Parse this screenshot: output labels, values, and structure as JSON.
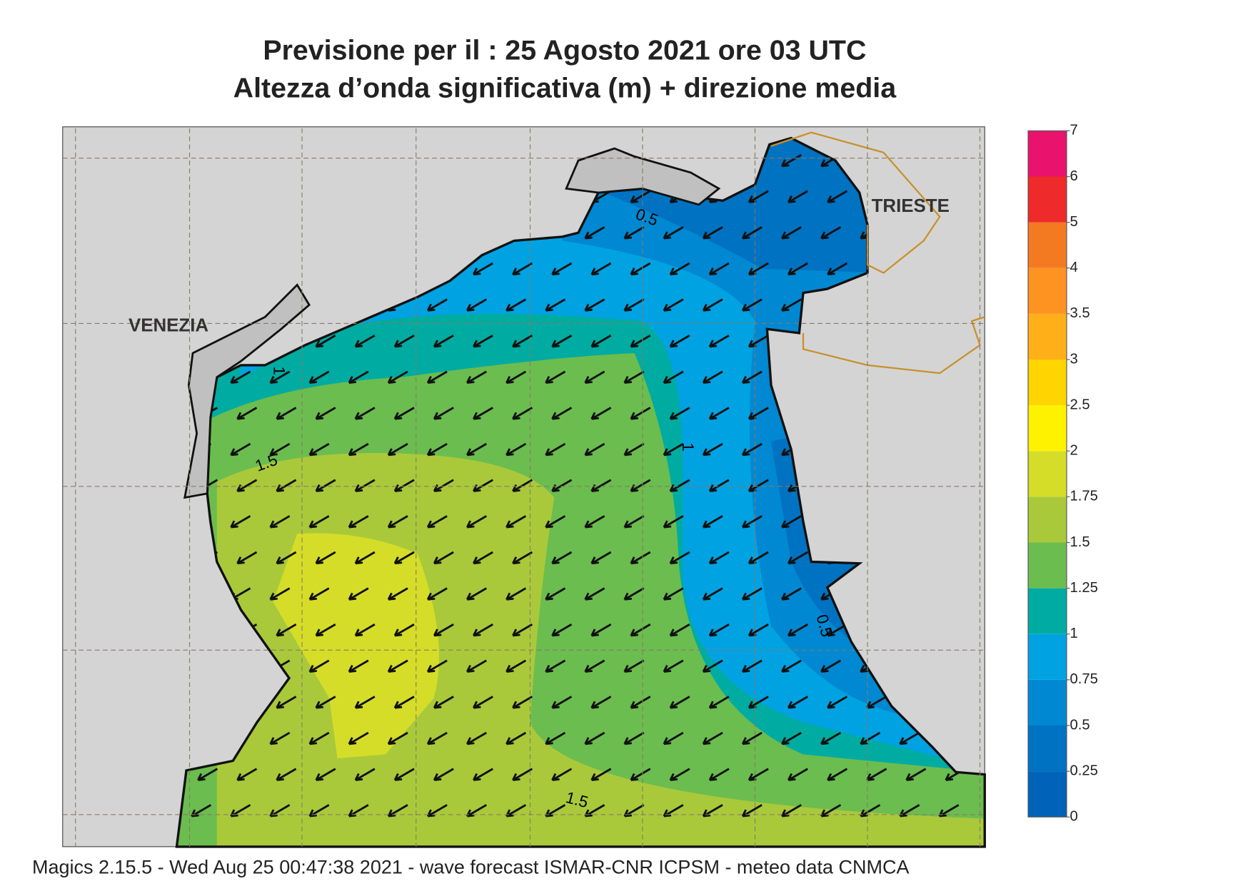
{
  "header": {
    "title": "Previsione per il  :  25   Agosto  2021   ore 03 UTC",
    "subtitle": "Altezza d’onda significativa (m) + direzione media"
  },
  "map": {
    "places": [
      "VENEZIA",
      "TRIESTE"
    ],
    "contour_labels": [
      0.5,
      1,
      1.5,
      1,
      0.5,
      1.5
    ]
  },
  "legend": {
    "levels": [
      0,
      0.25,
      0.5,
      0.75,
      1,
      1.25,
      1.5,
      1.75,
      2,
      2.5,
      3,
      3.5,
      4,
      5,
      6,
      7
    ],
    "colors": [
      "#0062b8",
      "#0072c2",
      "#0088d2",
      "#00a2e2",
      "#00aba2",
      "#6bbd4f",
      "#a9c93b",
      "#d5dd29",
      "#fff200",
      "#ffd400",
      "#ffb019",
      "#ff9322",
      "#f47a21",
      "#ee2a2a",
      "#e9126c"
    ]
  },
  "footer": "Magics 2.15.5 - Wed Aug 25 00:47:38 2021 - wave forecast  ISMAR-CNR  ICPSM - meteo data   CNMCA"
}
